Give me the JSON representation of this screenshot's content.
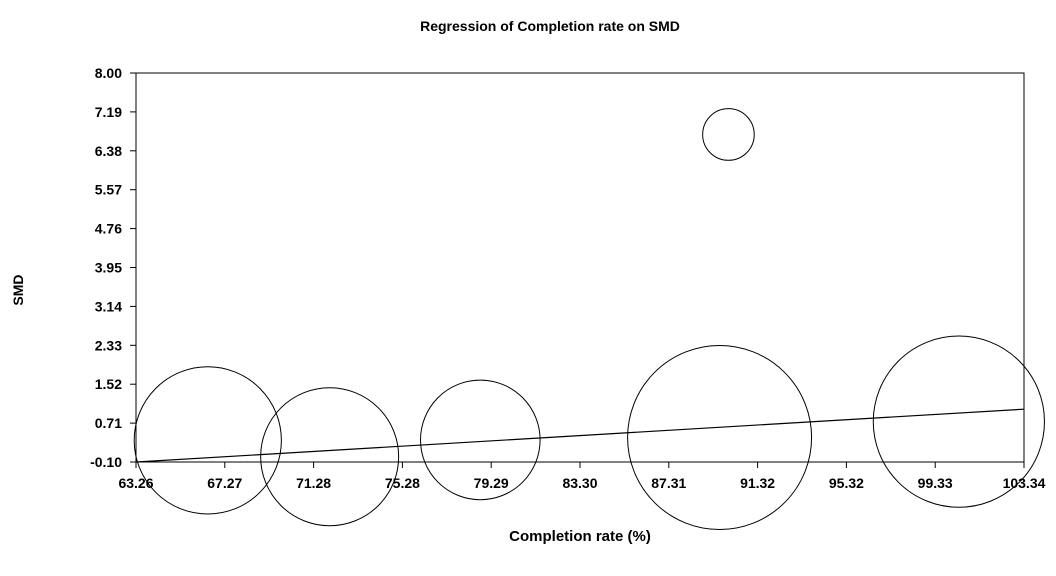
{
  "chart_data": {
    "type": "scatter",
    "title": "Regression of Completion rate on SMD",
    "xlabel": "Completion rate (%)",
    "ylabel": "SMD",
    "xlim": [
      63.26,
      103.34
    ],
    "ylim": [
      -0.1,
      8.0
    ],
    "x_ticks": [
      "63.26",
      "67.27",
      "71.28",
      "75.28",
      "79.29",
      "83.30",
      "87.31",
      "91.32",
      "95.32",
      "99.33",
      "103.34"
    ],
    "y_ticks": [
      "-0.10",
      "0.71",
      "1.52",
      "2.33",
      "3.14",
      "3.95",
      "4.76",
      "5.57",
      "6.38",
      "7.19",
      "8.00"
    ],
    "grid": false,
    "points": [
      {
        "x": 66.5,
        "y": 0.35,
        "weight": 0.8
      },
      {
        "x": 72.0,
        "y": 0.01,
        "weight": 0.75
      },
      {
        "x": 78.8,
        "y": 0.36,
        "weight": 0.65
      },
      {
        "x": 89.6,
        "y": 0.41,
        "weight": 1.0
      },
      {
        "x": 90.0,
        "y": 6.72,
        "weight": 0.28
      },
      {
        "x": 100.4,
        "y": 0.74,
        "weight": 0.93
      }
    ],
    "regression_line": {
      "x": [
        63.26,
        103.34
      ],
      "y": [
        -0.1,
        1.0
      ]
    },
    "stroke_color": "#000000"
  }
}
